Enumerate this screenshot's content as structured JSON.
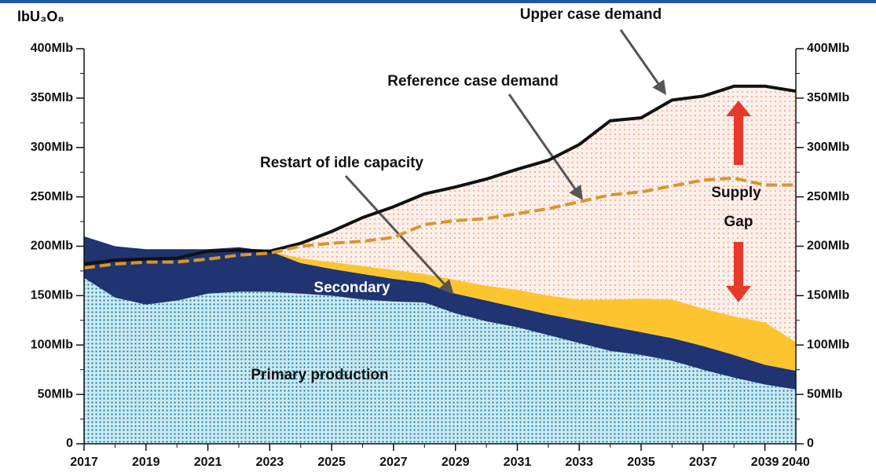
{
  "chart_data": {
    "type": "stacked_area",
    "ylabel": "lbU₃O₈",
    "x": [
      2017,
      2018,
      2019,
      2020,
      2021,
      2022,
      2023,
      2024,
      2025,
      2026,
      2027,
      2028,
      2029,
      2030,
      2031,
      2032,
      2033,
      2034,
      2035,
      2036,
      2037,
      2038,
      2039,
      2040
    ],
    "xlim": [
      2017,
      2040
    ],
    "xticks": [
      2017,
      2019,
      2021,
      2023,
      2025,
      2027,
      2029,
      2031,
      2033,
      2035,
      2037,
      2039,
      2040
    ],
    "ylim": [
      0,
      400
    ],
    "yticks": [
      0,
      {
        "value": 50,
        "label": "50Mlb"
      },
      {
        "value": 100,
        "label": "100Mlb"
      },
      {
        "value": 150,
        "label": "150Mlb"
      },
      {
        "value": 200,
        "label": "200Mlb"
      },
      {
        "value": 250,
        "label": "250Mlb"
      },
      {
        "value": 300,
        "label": "300Mlb"
      },
      {
        "value": 350,
        "label": "350Mlb"
      },
      {
        "value": 400,
        "label": "400Mlb"
      }
    ],
    "series": [
      {
        "name": "Primary production",
        "color": "#bfe3ee",
        "values": [
          168,
          148,
          141,
          145,
          152,
          154,
          154,
          152,
          150,
          146,
          144,
          143,
          132,
          124,
          118,
          110,
          102,
          94,
          90,
          84,
          75,
          67,
          60,
          55
        ]
      },
      {
        "name": "Secondary",
        "color": "#1f3470",
        "values": [
          42,
          52,
          56,
          52,
          45,
          45,
          41,
          31,
          27,
          26,
          23,
          20,
          20,
          21,
          20,
          21,
          23,
          25,
          23,
          23,
          24,
          23,
          20,
          19
        ]
      },
      {
        "name": "Restart of idle capacity",
        "color": "#fcc530",
        "values": [
          0,
          0,
          0,
          0,
          0,
          0,
          0,
          5,
          7,
          8,
          9,
          9,
          14,
          15,
          18,
          19,
          21,
          27,
          34,
          39,
          38,
          39,
          43,
          29
        ]
      },
      {
        "name": "Upper case demand",
        "kind": "line",
        "color": "#111111",
        "values": [
          182,
          186,
          187,
          188,
          195,
          196,
          195,
          203,
          215,
          229,
          240,
          253,
          260,
          268,
          278,
          287,
          303,
          327,
          330,
          348,
          352,
          362,
          362,
          357
        ]
      },
      {
        "name": "Reference case demand",
        "kind": "dashed",
        "color": "#d9952e",
        "values": [
          178,
          182,
          184,
          184,
          187,
          191,
          193,
          200,
          203,
          205,
          209,
          222,
          226,
          228,
          233,
          238,
          245,
          252,
          255,
          261,
          267,
          269,
          262,
          262
        ]
      }
    ],
    "annotations": [
      "Supply",
      "Gap"
    ]
  }
}
